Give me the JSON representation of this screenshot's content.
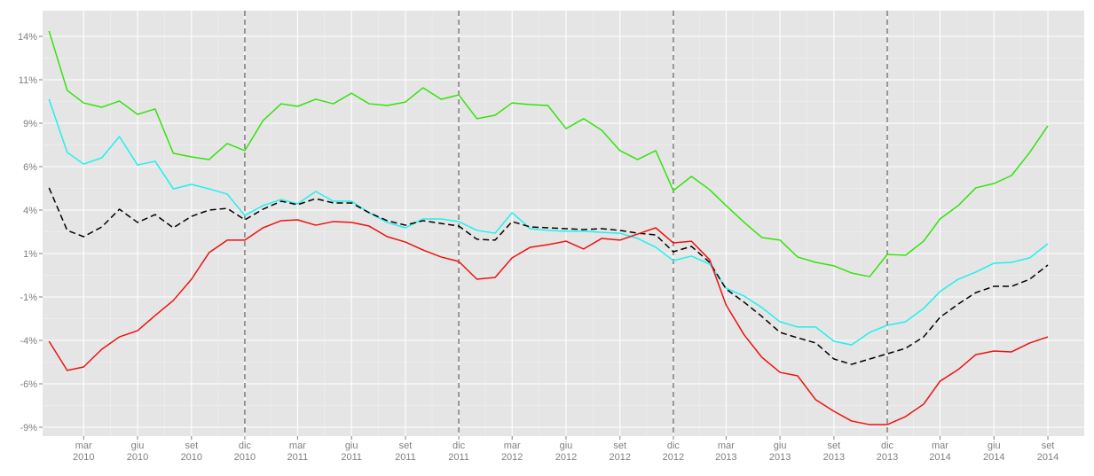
{
  "chart_data": {
    "type": "line",
    "x": [
      "2010-01",
      "2010-02",
      "2010-03",
      "2010-04",
      "2010-05",
      "2010-06",
      "2010-07",
      "2010-08",
      "2010-09",
      "2010-10",
      "2010-11",
      "2010-12",
      "2011-01",
      "2011-02",
      "2011-03",
      "2011-04",
      "2011-05",
      "2011-06",
      "2011-07",
      "2011-08",
      "2011-09",
      "2011-10",
      "2011-11",
      "2011-12",
      "2012-01",
      "2012-02",
      "2012-03",
      "2012-04",
      "2012-05",
      "2012-06",
      "2012-07",
      "2012-08",
      "2012-09",
      "2012-10",
      "2012-11",
      "2012-12",
      "2013-01",
      "2013-02",
      "2013-03",
      "2013-04",
      "2013-05",
      "2013-06",
      "2013-07",
      "2013-08",
      "2013-09",
      "2013-10",
      "2013-11",
      "2013-12",
      "2014-01",
      "2014-02",
      "2014-03",
      "2014-04",
      "2014-05",
      "2014-06",
      "2014-07",
      "2014-08",
      "2014-09"
    ],
    "series": [
      {
        "color": "#33e30c",
        "dash": false,
        "values": [
          14.06,
          10.64,
          9.92,
          9.67,
          10.03,
          9.26,
          9.57,
          7.02,
          6.81,
          6.66,
          7.58,
          7.17,
          8.9,
          9.87,
          9.72,
          10.13,
          9.87,
          10.48,
          9.87,
          9.77,
          9.97,
          10.79,
          10.13,
          10.38,
          9.01,
          9.21,
          9.92,
          9.82,
          9.77,
          8.44,
          9.01,
          8.34,
          7.17,
          6.66,
          7.17,
          4.87,
          5.69,
          4.92,
          4.01,
          3.04,
          2.17,
          2.02,
          1.05,
          0.74,
          0.54,
          0.13,
          -0.08,
          1.2,
          1.15,
          1.96,
          3.24,
          4.01,
          5.03,
          5.28,
          5.74,
          7.07,
          8.6
        ]
      },
      {
        "color": "#1ff0f0",
        "dash": false,
        "values": [
          10.13,
          7.07,
          6.4,
          6.76,
          7.98,
          6.35,
          6.56,
          4.97,
          5.23,
          4.97,
          4.67,
          3.44,
          4.01,
          4.36,
          4.11,
          4.82,
          4.26,
          4.26,
          3.6,
          3.04,
          2.73,
          3.24,
          3.24,
          3.09,
          2.58,
          2.42,
          3.6,
          2.68,
          2.58,
          2.53,
          2.53,
          2.47,
          2.42,
          2.12,
          1.61,
          0.84,
          1.1,
          0.64,
          -0.74,
          -1.2,
          -1.86,
          -2.68,
          -2.98,
          -2.98,
          -3.8,
          -4.01,
          -3.29,
          -2.88,
          -2.68,
          -1.91,
          -0.94,
          -0.23,
          0.18,
          0.69,
          0.74,
          1.0,
          1.81
        ]
      },
      {
        "color": "#000000",
        "dash": true,
        "values": [
          5.03,
          2.58,
          2.22,
          2.78,
          3.8,
          3.04,
          3.49,
          2.73,
          3.39,
          3.75,
          3.85,
          3.19,
          3.8,
          4.26,
          4.06,
          4.41,
          4.16,
          4.16,
          3.6,
          3.14,
          2.88,
          3.14,
          2.98,
          2.83,
          2.07,
          2.02,
          3.09,
          2.78,
          2.73,
          2.68,
          2.63,
          2.68,
          2.58,
          2.42,
          2.32,
          1.35,
          1.66,
          0.74,
          -0.79,
          -1.56,
          -2.37,
          -3.29,
          -3.6,
          -3.9,
          -4.82,
          -5.13,
          -4.82,
          -4.52,
          -4.21,
          -3.55,
          -2.42,
          -1.66,
          -1.0,
          -0.64,
          -0.64,
          -0.23,
          0.59
        ]
      },
      {
        "color": "#ee1111",
        "dash": false,
        "values": [
          -3.8,
          -5.48,
          -5.28,
          -4.26,
          -3.55,
          -3.19,
          -2.32,
          -1.45,
          -0.23,
          1.3,
          2.02,
          2.02,
          2.73,
          3.14,
          3.19,
          2.88,
          3.09,
          3.04,
          2.83,
          2.22,
          1.91,
          1.45,
          1.05,
          0.79,
          -0.23,
          -0.13,
          1.0,
          1.61,
          1.76,
          1.96,
          1.51,
          2.12,
          2.02,
          2.37,
          2.73,
          1.86,
          1.96,
          0.89,
          -1.71,
          -3.44,
          -4.72,
          -5.59,
          -5.79,
          -7.17,
          -7.83,
          -8.39,
          -8.6,
          -8.6,
          -8.14,
          -7.42,
          -6.1,
          -5.43,
          -4.57,
          -4.36,
          -4.41,
          -3.9,
          -3.55
        ]
      }
    ],
    "xlim": [
      "2009-12-21",
      "2014-11-02"
    ],
    "xticks": [
      {
        "value": "2010-03",
        "label": "mar 2010"
      },
      {
        "value": "2010-06",
        "label": "giu 2010"
      },
      {
        "value": "2010-09",
        "label": "set 2010"
      },
      {
        "value": "2010-12",
        "label": "dic 2010"
      },
      {
        "value": "2011-03",
        "label": "mar 2011"
      },
      {
        "value": "2011-06",
        "label": "giu 2011"
      },
      {
        "value": "2011-09",
        "label": "set 2011"
      },
      {
        "value": "2011-12",
        "label": "dic 2011"
      },
      {
        "value": "2012-03",
        "label": "mar 2012"
      },
      {
        "value": "2012-06",
        "label": "giu 2012"
      },
      {
        "value": "2012-09",
        "label": "set 2012"
      },
      {
        "value": "2012-12",
        "label": "dic 2012"
      },
      {
        "value": "2013-03",
        "label": "mar 2013"
      },
      {
        "value": "2013-06",
        "label": "giu 2013"
      },
      {
        "value": "2013-09",
        "label": "set 2013"
      },
      {
        "value": "2013-12",
        "label": "dic 2013"
      },
      {
        "value": "2014-03",
        "label": "mar 2014"
      },
      {
        "value": "2014-06",
        "label": "giu 2014"
      },
      {
        "value": "2014-09",
        "label": "set 2014"
      }
    ],
    "ylim": [
      -9.26,
      15.23
    ],
    "yticks": [
      {
        "value": -8.75,
        "label": "-9%"
      },
      {
        "value": -6.25,
        "label": "-6%"
      },
      {
        "value": -3.75,
        "label": "-4%"
      },
      {
        "value": -1.25,
        "label": "-1%"
      },
      {
        "value": 1.25,
        "label": "1%"
      },
      {
        "value": 3.75,
        "label": "4%"
      },
      {
        "value": 6.25,
        "label": "6%"
      },
      {
        "value": 8.75,
        "label": "9%"
      },
      {
        "value": 11.25,
        "label": "11%"
      },
      {
        "value": 13.75,
        "label": "14%"
      }
    ],
    "vlines": [
      "2010-12",
      "2011-12",
      "2012-12",
      "2013-12"
    ],
    "grid": true
  }
}
